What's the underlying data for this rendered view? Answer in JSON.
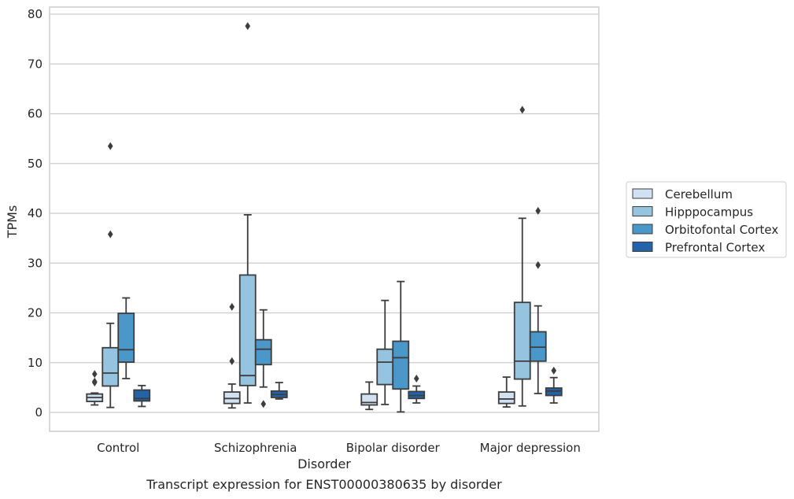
{
  "caption": "Transcript expression for ENST00000380635 by disorder",
  "chart_data": {
    "type": "box",
    "xlabel": "Disorder",
    "ylabel": "TPMs",
    "ylim": [
      -3.8,
      81.5
    ],
    "yticks": [
      0,
      10,
      20,
      30,
      40,
      50,
      60,
      70,
      80
    ],
    "grid": "horizontal",
    "legend_position": "right",
    "categories": [
      "Control",
      "Schizophrenia",
      "Bipolar disorder",
      "Major depression"
    ],
    "series": [
      {
        "name": "Cerebellum",
        "color": "#d0e1f1",
        "boxes": [
          {
            "whisker_low": 1.5,
            "q1": 2.2,
            "median": 3.0,
            "q3": 3.7,
            "whisker_high": 3.9,
            "outliers": [
              6.0,
              6.2,
              7.7
            ]
          },
          {
            "whisker_low": 0.9,
            "q1": 1.8,
            "median": 2.8,
            "q3": 4.1,
            "whisker_high": 5.7,
            "outliers": [
              10.3,
              21.2
            ]
          },
          {
            "whisker_low": 0.6,
            "q1": 1.5,
            "median": 2.0,
            "q3": 3.7,
            "whisker_high": 6.1,
            "outliers": []
          },
          {
            "whisker_low": 1.1,
            "q1": 1.8,
            "median": 2.7,
            "q3": 4.1,
            "whisker_high": 7.1,
            "outliers": []
          }
        ]
      },
      {
        "name": "Hipppocampus",
        "color": "#94c4df",
        "boxes": [
          {
            "whisker_low": 1.0,
            "q1": 5.3,
            "median": 7.9,
            "q3": 13.0,
            "whisker_high": 17.9,
            "outliers": [
              35.8,
              53.5
            ]
          },
          {
            "whisker_low": 1.9,
            "q1": 5.4,
            "median": 7.4,
            "q3": 27.6,
            "whisker_high": 39.7,
            "outliers": [
              77.6
            ]
          },
          {
            "whisker_low": 1.6,
            "q1": 5.6,
            "median": 10.1,
            "q3": 12.7,
            "whisker_high": 22.5,
            "outliers": []
          },
          {
            "whisker_low": 1.3,
            "q1": 6.7,
            "median": 10.3,
            "q3": 22.1,
            "whisker_high": 39.0,
            "outliers": [
              60.8
            ]
          }
        ]
      },
      {
        "name": "Orbitofontal Cortex",
        "color": "#4a98c9",
        "boxes": [
          {
            "whisker_low": 6.8,
            "q1": 10.1,
            "median": 12.6,
            "q3": 19.9,
            "whisker_high": 23.0,
            "outliers": []
          },
          {
            "whisker_low": 5.1,
            "q1": 9.6,
            "median": 12.7,
            "q3": 14.6,
            "whisker_high": 20.6,
            "outliers": [
              1.7
            ]
          },
          {
            "whisker_low": 0.1,
            "q1": 4.7,
            "median": 11.0,
            "q3": 14.3,
            "whisker_high": 26.3,
            "outliers": []
          },
          {
            "whisker_low": 3.8,
            "q1": 10.3,
            "median": 13.1,
            "q3": 16.2,
            "whisker_high": 21.4,
            "outliers": [
              29.6,
              40.5
            ]
          }
        ]
      },
      {
        "name": "Prefrontal Cortex",
        "color": "#2164ab",
        "boxes": [
          {
            "whisker_low": 1.2,
            "q1": 2.3,
            "median": 2.8,
            "q3": 4.5,
            "whisker_high": 5.4,
            "outliers": []
          },
          {
            "whisker_low": 2.7,
            "q1": 3.0,
            "median": 3.6,
            "q3": 4.3,
            "whisker_high": 6.0,
            "outliers": []
          },
          {
            "whisker_low": 1.9,
            "q1": 2.8,
            "median": 3.4,
            "q3": 4.2,
            "whisker_high": 5.3,
            "outliers": [
              6.8
            ]
          },
          {
            "whisker_low": 1.9,
            "q1": 3.4,
            "median": 4.3,
            "q3": 4.9,
            "whisker_high": 7.0,
            "outliers": [
              8.4
            ]
          }
        ]
      }
    ]
  }
}
